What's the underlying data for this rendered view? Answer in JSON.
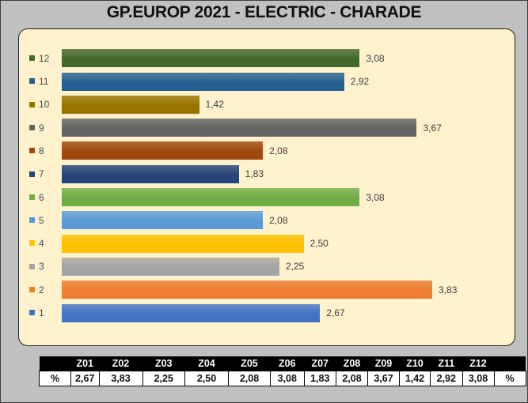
{
  "chart_data": {
    "type": "bar",
    "orientation": "horizontal",
    "title": "GP.EUROP 2021 - ELECTRIC  - CHARADE",
    "categories": [
      "1",
      "2",
      "3",
      "4",
      "5",
      "6",
      "7",
      "8",
      "9",
      "10",
      "11",
      "12"
    ],
    "values": [
      2.67,
      3.83,
      2.25,
      2.5,
      2.08,
      3.08,
      1.83,
      2.08,
      3.67,
      1.42,
      2.92,
      3.08
    ],
    "value_labels": [
      "2,67",
      "3,83",
      "2,25",
      "2,50",
      "2,08",
      "3,08",
      "1,83",
      "2,08",
      "3,67",
      "1,42",
      "2,92",
      "3,08"
    ],
    "colors": [
      "#4472c4",
      "#ed7d31",
      "#a5a5a5",
      "#ffc000",
      "#5b9bd5",
      "#70ad47",
      "#264478",
      "#9e480e",
      "#636363",
      "#997300",
      "#255e91",
      "#43682b"
    ],
    "xlim": [
      0,
      4.5
    ],
    "grid": false,
    "legend": "left"
  },
  "table": {
    "row_label": "%",
    "row_label_end": "%",
    "headers": [
      "Z01",
      "Z02",
      "Z03",
      "Z04",
      "Z05",
      "Z06",
      "Z07",
      "Z08",
      "Z09",
      "Z10",
      "Z11",
      "Z12"
    ],
    "values": [
      "2,67",
      "3,83",
      "2,25",
      "2,50",
      "2,08",
      "3,08",
      "1,83",
      "2,08",
      "3,67",
      "1,42",
      "2,92",
      "3,08"
    ]
  }
}
